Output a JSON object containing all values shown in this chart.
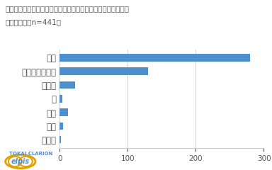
{
  "title_line1": "』はい『と答えた方に質問です。事故の危険を感じた対象者は",
  "title_line2": "誰ですか？（n=441）",
  "categories": [
    "ペット",
    "親戚",
    "友人",
    "親",
    "子ども",
    "他人（通行人）",
    "自分"
  ],
  "values": [
    2,
    5,
    12,
    4,
    22,
    130,
    280
  ],
  "bar_color": "#4d8fcc",
  "xlim": [
    0,
    300
  ],
  "xticks": [
    0,
    100,
    200,
    300
  ],
  "background_color": "#ffffff",
  "plot_bg_color": "#ffffff",
  "title_fontsize": 7.5,
  "label_fontsize": 8.5,
  "tick_fontsize": 7.5,
  "grid_color": "#cccccc",
  "text_color": "#555555",
  "logo_text": "TOKAI CLARION",
  "logo_elpis": "elpis",
  "logo_color": "#4d8fcc",
  "logo_oval_color": "#e0a000"
}
